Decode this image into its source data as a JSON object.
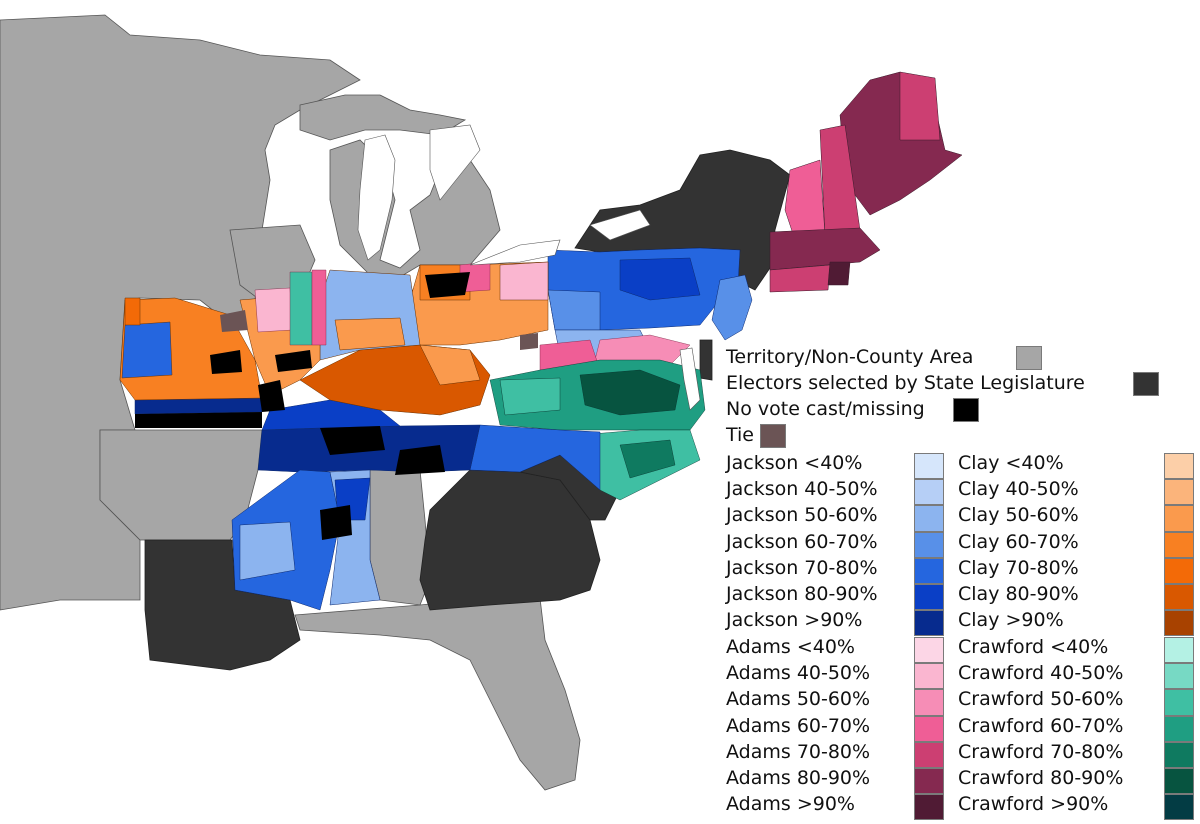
{
  "legend": {
    "special": [
      {
        "label": "Territory/Non-County Area",
        "color": "#a6a6a6"
      },
      {
        "label": "Electors selected by State Legislature",
        "color": "#333333"
      },
      {
        "label": "No vote cast/missing",
        "color": "#000000"
      },
      {
        "label": "Tie",
        "color": "#6b5455"
      }
    ],
    "jackson": {
      "labels": [
        "Jackson <40%",
        "Jackson 40-50%",
        "Jackson 50-60%",
        "Jackson 60-70%",
        "Jackson 70-80%",
        "Jackson 80-90%",
        "Jackson >90%"
      ],
      "colors": [
        "#d6e6fb",
        "#b6cff6",
        "#8cb4ef",
        "#5890e8",
        "#2566df",
        "#0a3fc6",
        "#072b8e"
      ]
    },
    "clay": {
      "labels": [
        "Clay <40%",
        "Clay 40-50%",
        "Clay 50-60%",
        "Clay 60-70%",
        "Clay 70-80%",
        "Clay 80-90%",
        "Clay >90%"
      ],
      "colors": [
        "#fccfa8",
        "#fbb47b",
        "#fa9a4d",
        "#f88022",
        "#f36a07",
        "#d95800",
        "#a84200"
      ]
    },
    "adams": {
      "labels": [
        "Adams <40%",
        "Adams 40-50%",
        "Adams 50-60%",
        "Adams 60-70%",
        "Adams 70-80%",
        "Adams 80-90%",
        "Adams >90%"
      ],
      "colors": [
        "#fcd6e6",
        "#fab6d0",
        "#f68db6",
        "#ef5e96",
        "#cc3f72",
        "#852950",
        "#501b34"
      ]
    },
    "crawford": {
      "labels": [
        "Crawford <40%",
        "Crawford 40-50%",
        "Crawford 50-60%",
        "Crawford 60-70%",
        "Crawford 70-80%",
        "Crawford 80-90%",
        "Crawford >90%"
      ],
      "colors": [
        "#b4f1e4",
        "#77d9c4",
        "#3fbfa3",
        "#1f9e82",
        "#0f7a60",
        "#075440",
        "#033c44"
      ]
    }
  },
  "map_colors": {
    "territory": "#a6a6a6",
    "legislature": "#333333",
    "water": "#ffffff",
    "border": "#555555"
  }
}
